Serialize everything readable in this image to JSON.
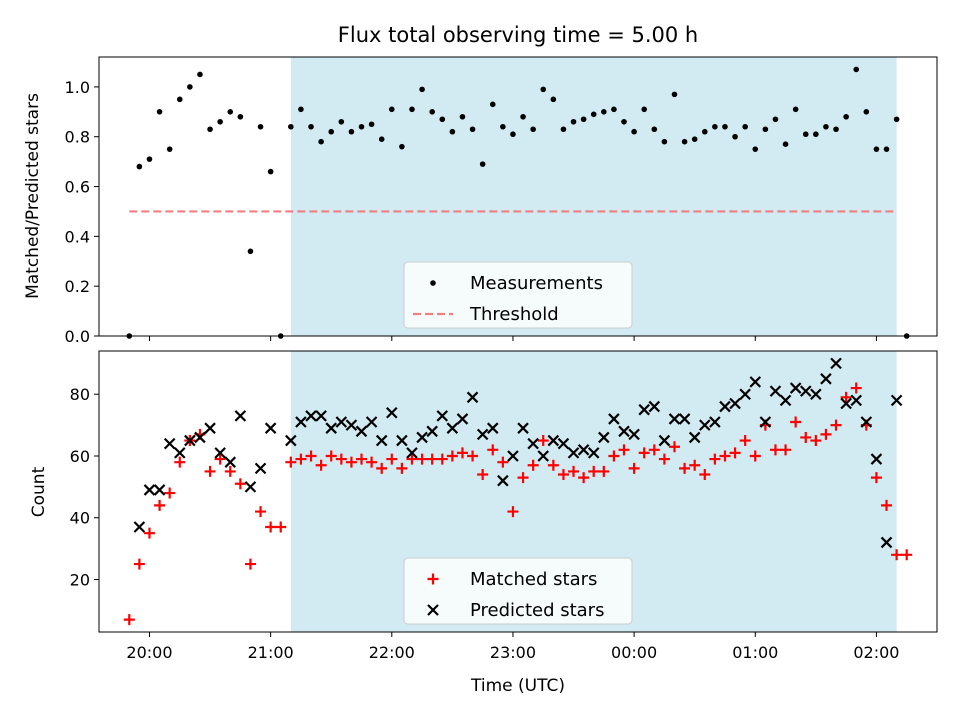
{
  "chart_data": {
    "type": "scatter",
    "title": "Flux total observing time = 5.00 h",
    "xlabel": "Time (UTC)",
    "x_ticks": [
      "20:00",
      "21:00",
      "22:00",
      "23:00",
      "00:00",
      "01:00",
      "02:00"
    ],
    "observing_window": {
      "start": "21:10",
      "end": "02:10",
      "color": "#add8e6"
    },
    "panels": [
      {
        "id": "ratio",
        "ylabel": "Matched/Predicted stars",
        "ylim": [
          0,
          1.12
        ],
        "yticks": [
          "0.0",
          "0.2",
          "0.4",
          "0.6",
          "0.8",
          "1.0"
        ],
        "legend": "bottom-center",
        "series": [
          {
            "name": "Measurements",
            "marker": "dot",
            "color": "#000000",
            "x": [
              "19:50",
              "19:55",
              "20:00",
              "20:05",
              "20:10",
              "20:15",
              "20:20",
              "20:25",
              "20:30",
              "20:35",
              "20:40",
              "20:45",
              "20:50",
              "20:55",
              "21:00",
              "21:05",
              "21:10",
              "21:15",
              "21:20",
              "21:25",
              "21:30",
              "21:35",
              "21:40",
              "21:45",
              "21:50",
              "21:55",
              "22:00",
              "22:05",
              "22:10",
              "22:15",
              "22:20",
              "22:25",
              "22:30",
              "22:35",
              "22:40",
              "22:45",
              "22:50",
              "22:55",
              "23:00",
              "23:05",
              "23:10",
              "23:15",
              "23:20",
              "23:25",
              "23:30",
              "23:35",
              "23:40",
              "23:45",
              "23:50",
              "23:55",
              "00:00",
              "00:05",
              "00:10",
              "00:15",
              "00:20",
              "00:25",
              "00:30",
              "00:35",
              "00:40",
              "00:45",
              "00:50",
              "00:55",
              "01:00",
              "01:05",
              "01:10",
              "01:15",
              "01:20",
              "01:25",
              "01:30",
              "01:35",
              "01:40",
              "01:45",
              "01:50",
              "01:55",
              "02:00",
              "02:05",
              "02:10",
              "02:15"
            ],
            "y": [
              0.0,
              0.68,
              0.71,
              0.9,
              0.75,
              0.95,
              1.0,
              1.05,
              0.83,
              0.86,
              0.9,
              0.88,
              0.34,
              0.84,
              0.66,
              0.0,
              0.84,
              0.91,
              0.84,
              0.78,
              0.82,
              0.86,
              0.82,
              0.84,
              0.85,
              0.79,
              0.91,
              0.76,
              0.91,
              0.99,
              0.9,
              0.87,
              0.82,
              0.88,
              0.83,
              0.69,
              0.93,
              0.84,
              0.81,
              0.88,
              0.83,
              0.99,
              0.95,
              0.83,
              0.86,
              0.87,
              0.89,
              0.9,
              0.91,
              0.86,
              0.82,
              0.91,
              0.83,
              0.78,
              0.97,
              0.78,
              0.79,
              0.82,
              0.84,
              0.84,
              0.8,
              0.84,
              0.75,
              0.83,
              0.87,
              0.77,
              0.91,
              0.81,
              0.81,
              0.84,
              0.83,
              0.88,
              1.07,
              0.9,
              0.75,
              0.75,
              0.87,
              0.0
            ]
          },
          {
            "name": "Threshold",
            "marker": "dashed-line",
            "color": "#f08080",
            "x": [
              "19:50",
              "02:10"
            ],
            "y": [
              0.5,
              0.5
            ]
          }
        ]
      },
      {
        "id": "counts",
        "ylabel": "Count",
        "ylim": [
          3,
          94
        ],
        "yticks": [
          "20",
          "40",
          "60",
          "80"
        ],
        "legend": "bottom-center",
        "series": [
          {
            "name": "Matched stars",
            "marker": "plus",
            "color": "#ff0000",
            "x": [
              "19:50",
              "19:55",
              "20:00",
              "20:05",
              "20:10",
              "20:15",
              "20:20",
              "20:25",
              "20:30",
              "20:35",
              "20:40",
              "20:45",
              "20:50",
              "20:55",
              "21:00",
              "21:05",
              "21:10",
              "21:15",
              "21:20",
              "21:25",
              "21:30",
              "21:35",
              "21:40",
              "21:45",
              "21:50",
              "21:55",
              "22:00",
              "22:05",
              "22:10",
              "22:15",
              "22:20",
              "22:25",
              "22:30",
              "22:35",
              "22:40",
              "22:45",
              "22:50",
              "22:55",
              "23:00",
              "23:05",
              "23:10",
              "23:15",
              "23:20",
              "23:25",
              "23:30",
              "23:35",
              "23:40",
              "23:45",
              "23:50",
              "23:55",
              "00:00",
              "00:05",
              "00:10",
              "00:15",
              "00:20",
              "00:25",
              "00:30",
              "00:35",
              "00:40",
              "00:45",
              "00:50",
              "00:55",
              "01:00",
              "01:05",
              "01:10",
              "01:15",
              "01:20",
              "01:25",
              "01:30",
              "01:35",
              "01:40",
              "01:45",
              "01:50",
              "01:55",
              "02:00",
              "02:05",
              "02:10",
              "02:15"
            ],
            "y": [
              7,
              25,
              35,
              44,
              48,
              58,
              65,
              67,
              55,
              59,
              55,
              51,
              25,
              42,
              37,
              37,
              58,
              59,
              60,
              57,
              60,
              59,
              58,
              59,
              58,
              56,
              59,
              56,
              59,
              59,
              59,
              59,
              60,
              61,
              60,
              54,
              62,
              58,
              42,
              53,
              57,
              65,
              57,
              54,
              55,
              53,
              55,
              55,
              60,
              62,
              56,
              61,
              62,
              59,
              63,
              56,
              57,
              54,
              59,
              60,
              61,
              65,
              60,
              70,
              62,
              62,
              71,
              66,
              65,
              67,
              70,
              79,
              82,
              70,
              53,
              44,
              28,
              28
            ]
          },
          {
            "name": "Predicted stars",
            "marker": "cross",
            "color": "#000000",
            "x": [
              "19:55",
              "20:00",
              "20:05",
              "20:10",
              "20:15",
              "20:20",
              "20:25",
              "20:30",
              "20:35",
              "20:40",
              "20:45",
              "20:50",
              "20:55",
              "21:00",
              "21:10",
              "21:15",
              "21:20",
              "21:25",
              "21:30",
              "21:35",
              "21:40",
              "21:45",
              "21:50",
              "21:55",
              "22:00",
              "22:05",
              "22:10",
              "22:15",
              "22:20",
              "22:25",
              "22:30",
              "22:35",
              "22:40",
              "22:45",
              "22:50",
              "22:55",
              "23:00",
              "23:05",
              "23:10",
              "23:15",
              "23:20",
              "23:25",
              "23:30",
              "23:35",
              "23:40",
              "23:45",
              "23:50",
              "23:55",
              "00:00",
              "00:05",
              "00:10",
              "00:15",
              "00:20",
              "00:25",
              "00:30",
              "00:35",
              "00:40",
              "00:45",
              "00:50",
              "00:55",
              "01:00",
              "01:05",
              "01:10",
              "01:15",
              "01:20",
              "01:25",
              "01:30",
              "01:35",
              "01:40",
              "01:45",
              "01:50",
              "01:55",
              "02:00",
              "02:05",
              "02:10"
            ],
            "y": [
              37,
              49,
              49,
              64,
              61,
              65,
              66,
              69,
              61,
              58,
              73,
              50,
              56,
              69,
              65,
              71,
              73,
              73,
              69,
              71,
              70,
              68,
              71,
              65,
              74,
              65,
              61,
              66,
              68,
              73,
              69,
              72,
              79,
              67,
              69,
              52,
              60,
              69,
              64,
              60,
              65,
              64,
              61,
              62,
              61,
              66,
              72,
              68,
              67,
              75,
              76,
              65,
              72,
              72,
              66,
              70,
              71,
              76,
              77,
              80,
              84,
              71,
              81,
              78,
              82,
              81,
              80,
              85,
              90,
              77,
              78,
              71,
              59,
              32,
              78
            ]
          }
        ]
      }
    ]
  }
}
